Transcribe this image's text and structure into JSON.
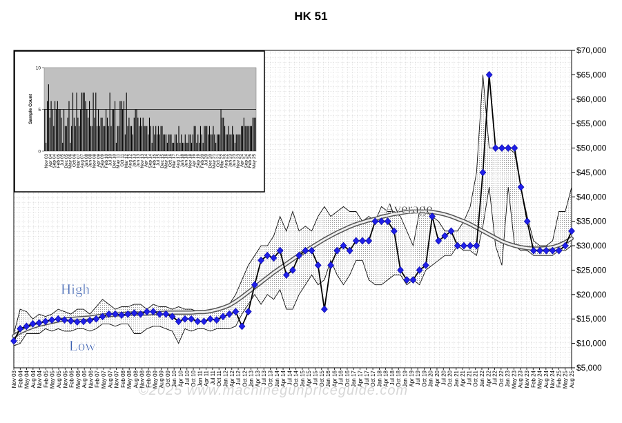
{
  "chart_data": [
    {
      "type": "line",
      "title": "HK 51",
      "ylim": [
        5000,
        70000
      ],
      "y_ticks": [
        "$5,000",
        "$10,000",
        "$15,000",
        "$20,000",
        "$25,000",
        "$30,000",
        "$35,000",
        "$40,000",
        "$45,000",
        "$50,000",
        "$55,000",
        "$60,000",
        "$65,000",
        "$70,000"
      ],
      "x_ticks": [
        "Nov 03",
        "Feb 04",
        "May 04",
        "Aug 04",
        "Nov 04",
        "Feb 05",
        "May 05",
        "Aug 05",
        "Nov 05",
        "Feb 06",
        "May 06",
        "Aug 06",
        "Nov 06",
        "Feb 07",
        "May 07",
        "Aug 07",
        "Nov 07",
        "Feb 08",
        "May 08",
        "Aug 08",
        "Nov 08",
        "Feb 09",
        "May 09",
        "Aug 09",
        "Oct 09",
        "Jan 10",
        "Apr 10",
        "Jul 10",
        "Oct 10",
        "Jan 11",
        "Apr 11",
        "Jul 11",
        "Oct 11",
        "Jan 12",
        "Apr 12",
        "Jul 12",
        "Oct 12",
        "Jan 13",
        "Apr 13",
        "Jul 13",
        "Oct 13",
        "Jan 14",
        "Apr 14",
        "Jul 14",
        "Oct 14",
        "Jan 15",
        "Apr 15",
        "Jul 15",
        "Oct 15",
        "Jan 16",
        "Apr 16",
        "Jul 16",
        "Oct 16",
        "Jan 17",
        "Apr 17",
        "Jul 17",
        "Oct 17",
        "Jan 18",
        "Apr 18",
        "Jul 18",
        "Oct 18",
        "Jan 19",
        "Apr 19",
        "Jul 19",
        "Oct 19",
        "Jan 20",
        "Apr 20",
        "Jul 20",
        "Oct 20",
        "Jan 21",
        "Apr 21",
        "Jul 21",
        "Oct 21",
        "Jan 22",
        "Apr 22",
        "Jul 22",
        "Oct 22",
        "Jan 23",
        "May 23",
        "Aug 23",
        "Nov 23",
        "Feb 24",
        "May 24",
        "Aug 24",
        "Nov 24",
        "Feb 25",
        "May 25",
        "Aug 25"
      ],
      "series": [
        {
          "name": "High",
          "values": [
            12000,
            17000,
            16500,
            15000,
            16000,
            15500,
            16000,
            17000,
            16500,
            16000,
            17000,
            17000,
            16000,
            17500,
            19000,
            18000,
            17000,
            17500,
            17500,
            18000,
            18000,
            17000,
            18000,
            17500,
            17500,
            17000,
            17500,
            17000,
            17000,
            16500,
            16500,
            17000,
            16500,
            17500,
            18000,
            20000,
            23000,
            26000,
            28000,
            30000,
            30000,
            32000,
            36000,
            33000,
            37000,
            33000,
            34000,
            33000,
            36000,
            38000,
            36000,
            37000,
            38000,
            37000,
            37000,
            35000,
            36000,
            35000,
            38000,
            37000,
            37000,
            36000,
            33000,
            30000,
            37000,
            37000,
            36000,
            35000,
            33000,
            33000,
            33000,
            35000,
            38000,
            45000,
            65000,
            50000,
            50000,
            50000,
            50000,
            49000,
            42000,
            36000,
            31000,
            30000,
            30000,
            31000,
            37000,
            37000,
            42000
          ]
        },
        {
          "name": "Low",
          "values": [
            9500,
            10000,
            12000,
            12000,
            12000,
            13000,
            12500,
            13000,
            12500,
            12500,
            13000,
            13000,
            12500,
            13000,
            14000,
            14000,
            13500,
            14000,
            14000,
            12000,
            12000,
            13000,
            13500,
            13500,
            13000,
            12500,
            10000,
            13000,
            12500,
            13000,
            13000,
            12500,
            13000,
            13000,
            13000,
            13500,
            16000,
            18000,
            20000,
            18000,
            20000,
            19000,
            21000,
            17000,
            17000,
            20000,
            22000,
            24000,
            22000,
            23000,
            27000,
            24000,
            22000,
            24000,
            27000,
            27000,
            23000,
            22000,
            22000,
            23000,
            24000,
            24000,
            22000,
            23000,
            22000,
            25000,
            26000,
            27000,
            28000,
            28000,
            30000,
            29000,
            29000,
            28000,
            34000,
            42000,
            30000,
            26000,
            42000,
            30000,
            29000,
            29000,
            28000,
            28000,
            28000,
            28000,
            29000,
            29000,
            30000
          ]
        },
        {
          "name": "Average",
          "values": [
            11500,
            12300,
            12900,
            13400,
            13800,
            14100,
            14400,
            14700,
            14900,
            15000,
            15100,
            15200,
            15300,
            15500,
            15700,
            15800,
            15900,
            16000,
            16100,
            16100,
            16100,
            16100,
            16200,
            16200,
            16300,
            16300,
            16300,
            16300,
            16300,
            16400,
            16400,
            16600,
            16900,
            17300,
            17800,
            18600,
            19500,
            20500,
            21500,
            22500,
            23500,
            24500,
            25400,
            26300,
            27200,
            28100,
            28900,
            29700,
            30500,
            31300,
            32000,
            32700,
            33300,
            33900,
            34400,
            34800,
            35200,
            35500,
            35900,
            36200,
            36500,
            36700,
            36900,
            37000,
            37000,
            37000,
            36900,
            36700,
            36400,
            36000,
            35500,
            35000,
            34400,
            33700,
            33000,
            32300,
            31600,
            30900,
            30400,
            30000,
            29700,
            29500,
            29400,
            29400,
            29500,
            29700,
            30100,
            30700,
            31500
          ]
        },
        {
          "name": "",
          "values": [
            10500,
            13000,
            13500,
            14000,
            14200,
            14500,
            14800,
            15000,
            14800,
            14600,
            14400,
            14500,
            14700,
            15000,
            15500,
            16000,
            16000,
            15800,
            16000,
            16200,
            16000,
            16500,
            16500,
            16000,
            16000,
            15500,
            14500,
            15000,
            15000,
            14500,
            14500,
            15000,
            14800,
            15500,
            16000,
            16500,
            13500,
            16500,
            22000,
            27000,
            28000,
            27500,
            29000,
            24000,
            25000,
            28000,
            29000,
            29000,
            26000,
            17000,
            26000,
            29000,
            30000,
            29000,
            31000,
            31000,
            31000,
            35000,
            35000,
            35000,
            33000,
            25000,
            23000,
            23000,
            25000,
            26000,
            36000,
            31000,
            32000,
            33000,
            30000,
            30000,
            30000,
            30000,
            45000,
            65000,
            50000,
            50000,
            50000,
            50000,
            42000,
            35000,
            29000,
            29000,
            29000,
            29000,
            29000,
            30000,
            33000
          ]
        }
      ],
      "annotations": [
        "High",
        "Low",
        "Average"
      ]
    },
    {
      "type": "bar",
      "ylabel": "Sample Count",
      "ylim": [
        0,
        10
      ],
      "y_ticks": [
        "0",
        "5",
        "10"
      ],
      "x_ticks": [
        "Nov 03",
        "Apr 04",
        "Sep 04",
        "Feb 05",
        "Jul 05",
        "Dec 05",
        "May 06",
        "Oct 06",
        "Mar 07",
        "Aug 07",
        "Jan 08",
        "Jun 08",
        "Nov 08",
        "Apr 09",
        "Sep 09",
        "Feb 10",
        "Jul 10",
        "Dec 10",
        "May 11",
        "Oct 11",
        "Mar 12",
        "Aug 12",
        "Jan 13",
        "Jun 13",
        "Nov 13",
        "Apr 14",
        "Sep 14",
        "Feb 15",
        "Jul 15",
        "Dec 15",
        "May 16",
        "Oct 16",
        "Mar 17",
        "Aug 17",
        "Jan 18",
        "Jun 18",
        "Nov 18",
        "Apr 19",
        "Sep 19",
        "Feb 20",
        "Jul 20",
        "Dec 20",
        "May 21",
        "Oct 21",
        "Mar 22",
        "Aug 22",
        "Jan 23",
        "Jun 23",
        "Nov 23",
        "Apr 24",
        "Sep 24",
        "Feb 25",
        "May 25"
      ],
      "reference_line": 5,
      "values": [
        5,
        1,
        6,
        8,
        4,
        6,
        5,
        3,
        6,
        5,
        6,
        5,
        5,
        4,
        1,
        5,
        3,
        3,
        4,
        6,
        1,
        3,
        7,
        4,
        3,
        7,
        4,
        3,
        5,
        7,
        7,
        7,
        6,
        5,
        4,
        6,
        3,
        3,
        7,
        4,
        7,
        3,
        5,
        3,
        4,
        4,
        3,
        3,
        5,
        4,
        3,
        7,
        3,
        5,
        5,
        6,
        1,
        3,
        3,
        6,
        6,
        5,
        6,
        2,
        7,
        3,
        4,
        3,
        3,
        2,
        4,
        5,
        5,
        4,
        3,
        4,
        3,
        4,
        3,
        3,
        3,
        2,
        4,
        3,
        1,
        3,
        2,
        3,
        2,
        3,
        2,
        3,
        3,
        2,
        2,
        2,
        1,
        2,
        2,
        2,
        1,
        1,
        2,
        2,
        1,
        3,
        1,
        2,
        1,
        1,
        2,
        1,
        1,
        2,
        2,
        1,
        2,
        3,
        3,
        1,
        2,
        1,
        3,
        2,
        1,
        3,
        3,
        3,
        2,
        3,
        2,
        2,
        3,
        2,
        1,
        2,
        2,
        2,
        5,
        4,
        4,
        3,
        2,
        2,
        3,
        2,
        2,
        3,
        2,
        1,
        2,
        2,
        2,
        2,
        3,
        3,
        4,
        3,
        3,
        3,
        3,
        3,
        3,
        4,
        4,
        4
      ]
    }
  ],
  "watermark": "©2025 www.machinegunpriceguide.com"
}
